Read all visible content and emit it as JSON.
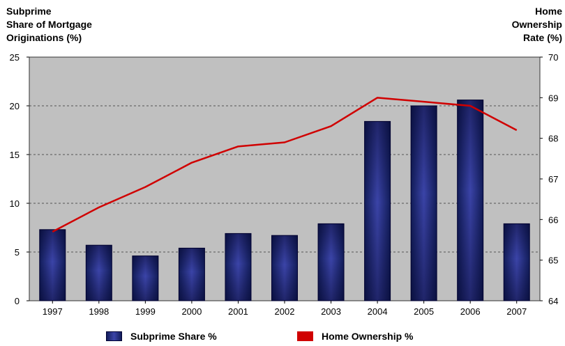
{
  "y_axis_left_label": "Subprime\nShare of Mortgage\nOriginations (%)",
  "y_axis_right_label": "Home\nOwnership\nRate (%)",
  "legend": {
    "subprime": "Subprime Share %",
    "home": "Home Ownership %"
  },
  "colors": {
    "plot_background": "#c0c0c0",
    "bar_dark": "#121d5a",
    "bar_light": "#3b44a8",
    "line": "#d00000"
  },
  "chart_data": {
    "type": "bar+line",
    "categories": [
      "1997",
      "1998",
      "1999",
      "2000",
      "2001",
      "2002",
      "2003",
      "2004",
      "2005",
      "2006",
      "2007"
    ],
    "series": [
      {
        "name": "Subprime Share %",
        "type": "bar",
        "axis": "left",
        "values": [
          7.3,
          5.7,
          4.6,
          5.4,
          6.9,
          6.7,
          7.9,
          18.4,
          20.0,
          20.6,
          7.9
        ]
      },
      {
        "name": "Home Ownership %",
        "type": "line",
        "axis": "right",
        "values": [
          65.7,
          66.3,
          66.8,
          67.4,
          67.8,
          67.9,
          68.3,
          69.0,
          68.9,
          68.8,
          68.2
        ]
      }
    ],
    "left_axis": {
      "ylim": [
        0,
        25
      ],
      "ticks": [
        "0",
        "5",
        "10",
        "15",
        "20",
        "25"
      ]
    },
    "right_axis": {
      "ylim": [
        64,
        70
      ],
      "ticks": [
        "64",
        "65",
        "66",
        "67",
        "68",
        "69",
        "70"
      ]
    },
    "grid": "horizontal dashed",
    "legend_position": "bottom"
  }
}
